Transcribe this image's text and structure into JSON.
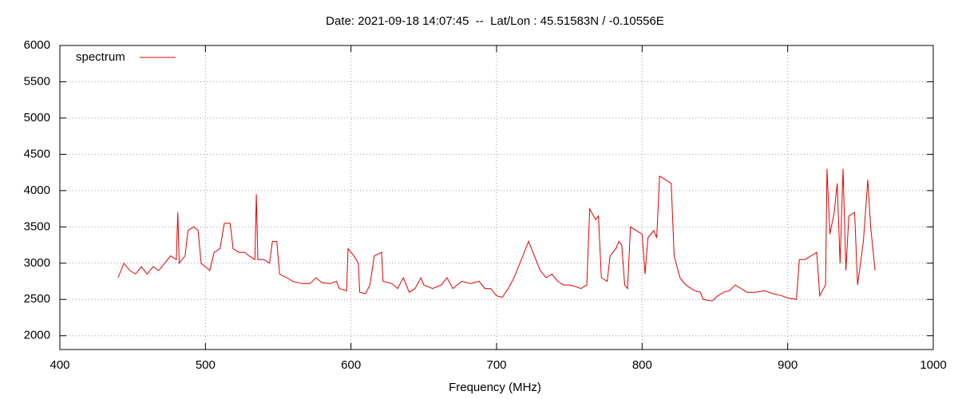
{
  "chart_data": {
    "type": "line",
    "title": "Date: 2021-09-18 14:07:45  --  Lat/Lon : 45.51583N / -0.10556E",
    "xlabel": "Frequency (MHz)",
    "x": [
      440,
      444,
      448,
      452,
      456,
      460,
      464,
      468,
      472,
      476,
      480,
      481,
      482,
      486,
      488,
      492,
      495,
      497,
      500,
      503,
      506,
      510,
      513,
      517,
      519,
      523,
      527,
      530,
      534,
      535,
      536,
      540,
      544,
      546,
      549,
      551,
      556,
      560,
      566,
      572,
      576,
      580,
      586,
      590,
      592,
      597,
      598,
      602,
      605,
      606,
      610,
      613,
      616,
      621,
      622,
      628,
      632,
      636,
      640,
      644,
      648,
      650,
      656,
      662,
      666,
      670,
      676,
      682,
      688,
      692,
      696,
      700,
      704,
      708,
      712,
      716,
      720,
      722,
      726,
      730,
      734,
      738,
      742,
      746,
      750,
      754,
      758,
      762,
      764,
      768,
      770,
      772,
      776,
      778,
      782,
      784,
      786,
      788,
      790,
      792,
      796,
      800,
      802,
      804,
      808,
      810,
      812,
      816,
      820,
      822,
      826,
      830,
      836,
      840,
      842,
      848,
      852,
      856,
      860,
      864,
      868,
      872,
      878,
      884,
      890,
      896,
      900,
      906,
      908,
      912,
      916,
      920,
      922,
      926,
      927,
      929,
      932,
      934,
      936,
      938,
      940,
      942,
      946,
      948,
      952,
      955,
      957,
      960
    ],
    "series": [
      {
        "name": "spectrum",
        "color": "#e00000",
        "values": [
          2800,
          3000,
          2900,
          2850,
          2950,
          2850,
          2950,
          2900,
          3000,
          3100,
          3050,
          3700,
          3000,
          3100,
          3450,
          3500,
          3450,
          3000,
          2950,
          2900,
          3150,
          3200,
          3550,
          3550,
          3200,
          3150,
          3150,
          3100,
          3050,
          3950,
          3050,
          3050,
          3000,
          3300,
          3300,
          2850,
          2800,
          2750,
          2720,
          2720,
          2800,
          2730,
          2720,
          2750,
          2650,
          2620,
          3200,
          3100,
          3000,
          2600,
          2580,
          2700,
          3100,
          3150,
          2750,
          2720,
          2650,
          2800,
          2600,
          2650,
          2800,
          2700,
          2650,
          2700,
          2800,
          2650,
          2750,
          2720,
          2750,
          2650,
          2650,
          2550,
          2530,
          2650,
          2800,
          3000,
          3200,
          3300,
          3100,
          2900,
          2800,
          2850,
          2750,
          2700,
          2700,
          2680,
          2650,
          2700,
          3750,
          3600,
          3650,
          2800,
          2750,
          3100,
          3200,
          3300,
          3250,
          2700,
          2650,
          3500,
          3450,
          3400,
          2850,
          3350,
          3450,
          3350,
          4200,
          4150,
          4100,
          3100,
          2800,
          2700,
          2620,
          2600,
          2500,
          2480,
          2550,
          2600,
          2620,
          2700,
          2650,
          2600,
          2600,
          2620,
          2580,
          2550,
          2520,
          2500,
          3050,
          3050,
          3100,
          3150,
          2550,
          2700,
          4300,
          3400,
          3700,
          4100,
          3000,
          4300,
          2900,
          3650,
          3700,
          2700,
          3300,
          4150,
          3500,
          2900
        ]
      }
    ],
    "xlim": [
      400,
      1000
    ],
    "xticks": [
      400,
      500,
      600,
      700,
      800,
      900,
      1000
    ],
    "ylim": [
      1810,
      6000
    ],
    "yticks": [
      2000,
      2500,
      3000,
      3500,
      4000,
      4500,
      5000,
      5500,
      6000
    ],
    "grid": true,
    "legend": "top-left"
  }
}
